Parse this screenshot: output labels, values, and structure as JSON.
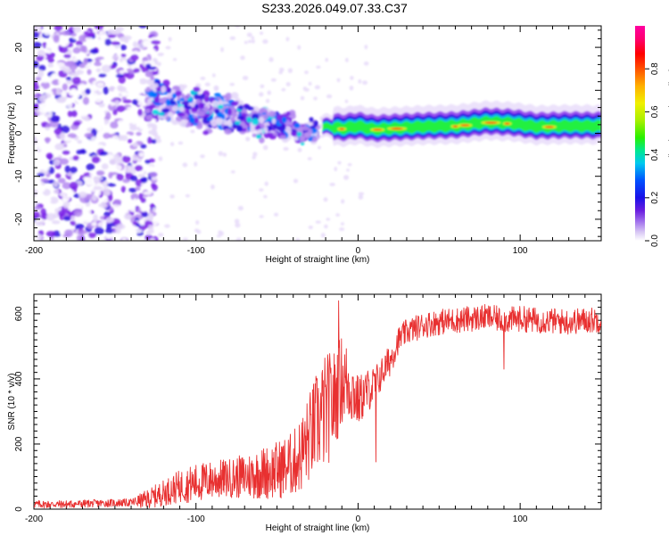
{
  "title": "S233.2026.049.07.33.C37",
  "colorbar": {
    "label": "Normalized spectral amplitude",
    "ticks": [
      "0.0",
      "0.2",
      "0.4",
      "0.6",
      "0.8"
    ],
    "tick_values": [
      0.0,
      0.2,
      0.4,
      0.6,
      0.8
    ],
    "range": [
      0,
      1
    ],
    "colors": [
      "#ffffff",
      "#a070ec",
      "#1a10e8",
      "#00c8f0",
      "#28f000",
      "#f0f000",
      "#ff5000",
      "#ff0000",
      "#ff00a0"
    ]
  },
  "chart_data": [
    {
      "type": "heatmap",
      "xlabel": "Height of straight line (km)",
      "ylabel": "Frequency (Hz)",
      "xlim": [
        -200,
        150
      ],
      "ylim": [
        -25,
        25
      ],
      "x_ticks": [
        "-200",
        "-100",
        "0",
        "100"
      ],
      "x_tick_values": [
        -200,
        -100,
        0,
        100
      ],
      "y_ticks": [
        "-20",
        "-10",
        "0",
        "10",
        "20"
      ],
      "y_tick_values": [
        -20,
        -10,
        0,
        10,
        20
      ],
      "ridge": [
        {
          "x": -20,
          "f": 1.5
        },
        {
          "x": -10,
          "f": 1.0
        },
        {
          "x": 0,
          "f": 1.5
        },
        {
          "x": 10,
          "f": 0.8
        },
        {
          "x": 20,
          "f": 1.0
        },
        {
          "x": 40,
          "f": 1.4
        },
        {
          "x": 60,
          "f": 1.6
        },
        {
          "x": 80,
          "f": 2.5
        },
        {
          "x": 95,
          "f": 2.2
        },
        {
          "x": 110,
          "f": 1.4
        },
        {
          "x": 130,
          "f": 1.6
        },
        {
          "x": 150,
          "f": 1.5
        }
      ],
      "regions": [
        {
          "name": "noise",
          "x_range": [
            -200,
            -130
          ],
          "f_range": [
            -25,
            25
          ],
          "amplitude": 0.12
        },
        {
          "name": "scatter",
          "x_range": [
            -130,
            -25
          ],
          "f_range": [
            -12,
            14
          ],
          "amplitude": 0.25
        },
        {
          "name": "tone",
          "x_range": [
            -20,
            150
          ],
          "f_range": [
            0,
            3
          ],
          "amplitude": 0.95
        }
      ],
      "colorscale": "rainbow"
    },
    {
      "type": "line",
      "xlabel": "Height of straight line (km)",
      "ylabel": "SNR (10 * v/v)",
      "xlim": [
        -200,
        150
      ],
      "ylim": [
        0,
        660
      ],
      "x_ticks": [
        "-200",
        "-100",
        "0",
        "100"
      ],
      "x_tick_values": [
        -200,
        -100,
        0,
        100
      ],
      "y_ticks": [
        "0",
        "200",
        "400",
        "600"
      ],
      "y_tick_values": [
        0,
        200,
        400,
        600
      ],
      "color": "#e83030",
      "series": [
        {
          "name": "SNR",
          "x": [
            -200,
            -180,
            -160,
            -140,
            -130,
            -120,
            -110,
            -100,
            -90,
            -80,
            -70,
            -60,
            -50,
            -40,
            -35,
            -30,
            -25,
            -20,
            -15,
            -10,
            -5,
            0,
            5,
            10,
            15,
            20,
            25,
            30,
            40,
            50,
            60,
            70,
            80,
            90,
            100,
            110,
            120,
            130,
            140,
            150
          ],
          "y": [
            15,
            15,
            18,
            20,
            30,
            50,
            70,
            80,
            90,
            95,
            100,
            110,
            120,
            140,
            170,
            220,
            270,
            300,
            330,
            400,
            380,
            330,
            360,
            380,
            420,
            460,
            520,
            545,
            565,
            575,
            580,
            585,
            590,
            580,
            585,
            580,
            578,
            575,
            580,
            582
          ],
          "noise_band": [
            12,
            12,
            12,
            12,
            30,
            40,
            50,
            60,
            60,
            60,
            70,
            80,
            90,
            100,
            120,
            140,
            160,
            180,
            160,
            140,
            120,
            80,
            70,
            60,
            50,
            50,
            40,
            40,
            40,
            40,
            40,
            40,
            40,
            40,
            40,
            40,
            40,
            40,
            40,
            40
          ]
        }
      ],
      "annotations": [
        {
          "x": -12,
          "y": 640,
          "label": "peak"
        },
        {
          "x": 11,
          "y": 145,
          "label": "dip"
        },
        {
          "x": 90,
          "y": 430,
          "label": "dip"
        }
      ]
    }
  ]
}
